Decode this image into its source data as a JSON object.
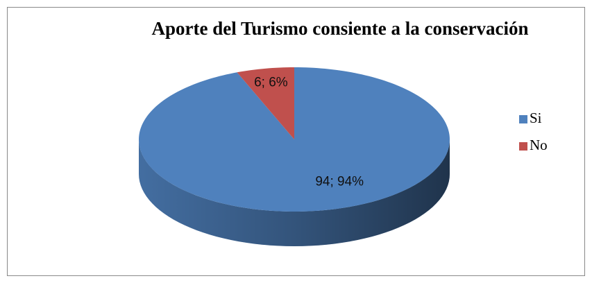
{
  "chart_data": {
    "type": "pie",
    "title": "Aporte del Turismo consiente a la conservación",
    "categories": [
      "Si",
      "No"
    ],
    "values": [
      94,
      6
    ],
    "value_labels": [
      "94; 94%",
      "6; 6%"
    ],
    "colors": [
      "#4f81bd",
      "#c0504d"
    ],
    "legend": "right"
  }
}
